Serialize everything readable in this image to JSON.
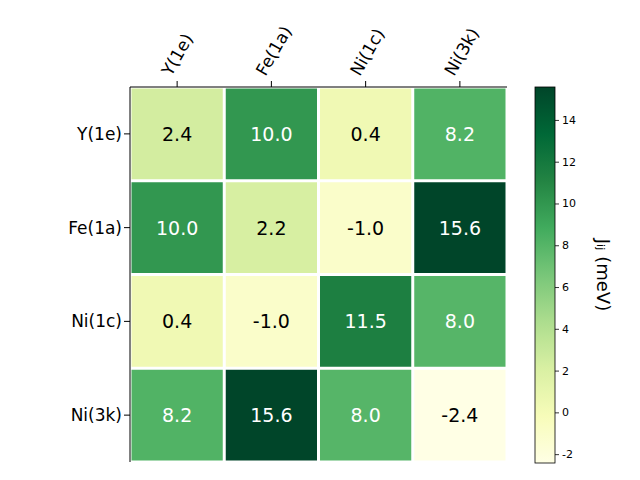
{
  "chart_data": {
    "type": "heatmap",
    "x_categories": [
      "Y(1e)",
      "Fe(1a)",
      "Ni(1c)",
      "Ni(3k)"
    ],
    "y_categories": [
      "Y(1e)",
      "Fe(1a)",
      "Ni(1c)",
      "Ni(3k)"
    ],
    "values": [
      [
        2.4,
        10.0,
        0.4,
        8.2
      ],
      [
        10.0,
        2.2,
        -1.0,
        15.6
      ],
      [
        0.4,
        -1.0,
        11.5,
        8.0
      ],
      [
        8.2,
        15.6,
        8.0,
        -2.4
      ]
    ],
    "value_labels": [
      [
        "2.4",
        "10.0",
        "0.4",
        "8.2"
      ],
      [
        "10.0",
        "2.2",
        "-1.0",
        "15.6"
      ],
      [
        "0.4",
        "-1.0",
        "11.5",
        "8.0"
      ],
      [
        "8.2",
        "15.6",
        "8.0",
        "-2.4"
      ]
    ],
    "color_range": [
      -2.4,
      15.6
    ],
    "color_ticks": [
      -2,
      0,
      2,
      4,
      6,
      8,
      10,
      12,
      14
    ],
    "colorbar_label": "Jᵢⱼ (meV)",
    "data_labels": true
  }
}
